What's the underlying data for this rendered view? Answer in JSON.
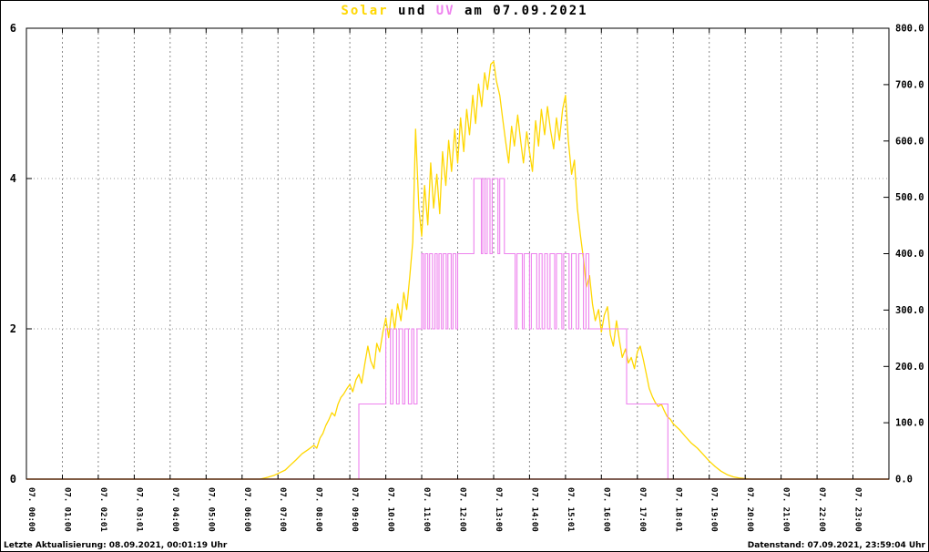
{
  "title": {
    "solar": "Solar",
    "und": " und ",
    "uv": "UV",
    "date": " am 07.09.2021"
  },
  "footer": {
    "left": "Letzte Aktualisierung: 08.09.2021, 00:01:19 Uhr",
    "right": "Datenstand: 07.09.2021, 23:59:04 Uhr"
  },
  "colors": {
    "solar": "#ffd700",
    "uv": "#ee82ee",
    "baseline": "#ff7f50",
    "grid_v": "#888888",
    "grid_h": "#999999",
    "axis": "#000000"
  },
  "chart_data": {
    "type": "line",
    "title": "Solar und UV am 07.09.2021",
    "grid": {
      "vertical": "hourly",
      "horizontal_left_ticks": [
        2,
        4,
        6
      ]
    },
    "x_axis": {
      "range_hours": [
        0,
        24
      ],
      "tick_hours": [
        0,
        1,
        2,
        3,
        4,
        5,
        6,
        7,
        8,
        9,
        10,
        11,
        12,
        13,
        14,
        15,
        16,
        17,
        18,
        19,
        20,
        21,
        22,
        23
      ],
      "tick_labels": [
        "07. 00:00",
        "07. 01:00",
        "07. 02:01",
        "07. 03:01",
        "07. 04:00",
        "07. 05:00",
        "07. 06:00",
        "07. 07:00",
        "07. 08:00",
        "07. 09:00",
        "07. 10:00",
        "07. 11:00",
        "07. 12:00",
        "07. 13:00",
        "07. 14:00",
        "07. 15:01",
        "07. 16:00",
        "07. 17:00",
        "07. 18:01",
        "07. 19:00",
        "07. 20:00",
        "07. 21:00",
        "07. 22:00",
        "07. 23:00"
      ]
    },
    "y_left": {
      "min": 0,
      "max": 6,
      "ticks": [
        0,
        2,
        4,
        6
      ],
      "tick_labels": [
        "0",
        "2",
        "4",
        "6"
      ]
    },
    "y_right": {
      "min": 0,
      "max": 800,
      "ticks": [
        0,
        100,
        200,
        300,
        400,
        500,
        600,
        700,
        800
      ],
      "tick_labels": [
        "0.0",
        "100.0",
        "200.0",
        "300.0",
        "400.0",
        "500.0",
        "600.0",
        "700.0",
        "800.0"
      ]
    },
    "series": [
      {
        "name": "Solar",
        "axis": "right",
        "style": "line",
        "color": "#ffd700",
        "points": [
          [
            0,
            0
          ],
          [
            6.5,
            0
          ],
          [
            6.7,
            3
          ],
          [
            6.9,
            7
          ],
          [
            7.0,
            10
          ],
          [
            7.2,
            16
          ],
          [
            7.33,
            24
          ],
          [
            7.5,
            34
          ],
          [
            7.67,
            45
          ],
          [
            7.83,
            52
          ],
          [
            8.0,
            60
          ],
          [
            8.08,
            55
          ],
          [
            8.17,
            73
          ],
          [
            8.25,
            81
          ],
          [
            8.33,
            95
          ],
          [
            8.42,
            106
          ],
          [
            8.5,
            118
          ],
          [
            8.58,
            112
          ],
          [
            8.67,
            133
          ],
          [
            8.75,
            145
          ],
          [
            8.83,
            151
          ],
          [
            8.92,
            161
          ],
          [
            9.0,
            168
          ],
          [
            9.08,
            155
          ],
          [
            9.17,
            176
          ],
          [
            9.25,
            186
          ],
          [
            9.33,
            170
          ],
          [
            9.42,
            206
          ],
          [
            9.5,
            236
          ],
          [
            9.58,
            210
          ],
          [
            9.67,
            196
          ],
          [
            9.75,
            241
          ],
          [
            9.83,
            226
          ],
          [
            9.92,
            261
          ],
          [
            10.0,
            286
          ],
          [
            10.08,
            251
          ],
          [
            10.17,
            301
          ],
          [
            10.25,
            266
          ],
          [
            10.33,
            311
          ],
          [
            10.42,
            281
          ],
          [
            10.5,
            331
          ],
          [
            10.58,
            301
          ],
          [
            10.67,
            361
          ],
          [
            10.75,
            421
          ],
          [
            10.83,
            621
          ],
          [
            10.92,
            481
          ],
          [
            11.0,
            431
          ],
          [
            11.08,
            521
          ],
          [
            11.17,
            451
          ],
          [
            11.25,
            561
          ],
          [
            11.33,
            481
          ],
          [
            11.42,
            541
          ],
          [
            11.5,
            471
          ],
          [
            11.58,
            581
          ],
          [
            11.67,
            521
          ],
          [
            11.75,
            601
          ],
          [
            11.83,
            546
          ],
          [
            11.92,
            621
          ],
          [
            12.0,
            561
          ],
          [
            12.08,
            641
          ],
          [
            12.17,
            581
          ],
          [
            12.25,
            656
          ],
          [
            12.33,
            611
          ],
          [
            12.42,
            681
          ],
          [
            12.5,
            631
          ],
          [
            12.58,
            701
          ],
          [
            12.67,
            661
          ],
          [
            12.75,
            721
          ],
          [
            12.83,
            691
          ],
          [
            12.92,
            736
          ],
          [
            13.0,
            741
          ],
          [
            13.08,
            706
          ],
          [
            13.17,
            681
          ],
          [
            13.25,
            641
          ],
          [
            13.33,
            601
          ],
          [
            13.42,
            561
          ],
          [
            13.5,
            626
          ],
          [
            13.58,
            591
          ],
          [
            13.67,
            646
          ],
          [
            13.75,
            601
          ],
          [
            13.83,
            561
          ],
          [
            13.92,
            616
          ],
          [
            14.0,
            581
          ],
          [
            14.08,
            546
          ],
          [
            14.17,
            636
          ],
          [
            14.25,
            591
          ],
          [
            14.33,
            656
          ],
          [
            14.42,
            611
          ],
          [
            14.5,
            661
          ],
          [
            14.58,
            621
          ],
          [
            14.67,
            586
          ],
          [
            14.75,
            641
          ],
          [
            14.83,
            601
          ],
          [
            14.92,
            656
          ],
          [
            15.0,
            681
          ],
          [
            15.08,
            601
          ],
          [
            15.17,
            541
          ],
          [
            15.25,
            566
          ],
          [
            15.33,
            481
          ],
          [
            15.42,
            431
          ],
          [
            15.5,
            391
          ],
          [
            15.58,
            341
          ],
          [
            15.67,
            361
          ],
          [
            15.75,
            311
          ],
          [
            15.83,
            281
          ],
          [
            15.92,
            301
          ],
          [
            16.0,
            261
          ],
          [
            16.08,
            291
          ],
          [
            16.17,
            306
          ],
          [
            16.25,
            256
          ],
          [
            16.33,
            236
          ],
          [
            16.42,
            281
          ],
          [
            16.5,
            246
          ],
          [
            16.58,
            216
          ],
          [
            16.67,
            231
          ],
          [
            16.75,
            206
          ],
          [
            16.83,
            216
          ],
          [
            16.92,
            196
          ],
          [
            17.0,
            226
          ],
          [
            17.08,
            236
          ],
          [
            17.17,
            211
          ],
          [
            17.25,
            186
          ],
          [
            17.33,
            161
          ],
          [
            17.42,
            146
          ],
          [
            17.5,
            136
          ],
          [
            17.58,
            129
          ],
          [
            17.67,
            133
          ],
          [
            17.75,
            121
          ],
          [
            17.83,
            111
          ],
          [
            17.92,
            106
          ],
          [
            18.0,
            98
          ],
          [
            18.17,
            88
          ],
          [
            18.33,
            76
          ],
          [
            18.5,
            64
          ],
          [
            18.67,
            55
          ],
          [
            18.83,
            44
          ],
          [
            19.0,
            32
          ],
          [
            19.17,
            22
          ],
          [
            19.33,
            14
          ],
          [
            19.5,
            8
          ],
          [
            19.67,
            4
          ],
          [
            19.83,
            2
          ],
          [
            20.0,
            1
          ],
          [
            20.17,
            0
          ],
          [
            24,
            0
          ]
        ]
      },
      {
        "name": "UV",
        "axis": "left",
        "style": "step",
        "color": "#ee82ee",
        "points": [
          [
            0,
            0
          ],
          [
            9.25,
            1
          ],
          [
            10.0,
            2
          ],
          [
            10.13,
            1
          ],
          [
            10.2,
            2
          ],
          [
            10.3,
            1
          ],
          [
            10.37,
            2
          ],
          [
            10.47,
            1
          ],
          [
            10.53,
            2
          ],
          [
            10.63,
            1
          ],
          [
            10.72,
            2
          ],
          [
            10.78,
            1
          ],
          [
            10.87,
            2
          ],
          [
            11.0,
            3
          ],
          [
            11.05,
            2
          ],
          [
            11.1,
            3
          ],
          [
            11.17,
            2
          ],
          [
            11.22,
            3
          ],
          [
            11.3,
            2
          ],
          [
            11.37,
            3
          ],
          [
            11.43,
            2
          ],
          [
            11.48,
            3
          ],
          [
            11.55,
            2
          ],
          [
            11.6,
            3
          ],
          [
            11.68,
            2
          ],
          [
            11.73,
            3
          ],
          [
            11.82,
            2
          ],
          [
            11.87,
            3
          ],
          [
            11.95,
            2
          ],
          [
            12.0,
            3
          ],
          [
            12.45,
            4
          ],
          [
            12.66,
            3
          ],
          [
            12.7,
            4
          ],
          [
            12.76,
            3
          ],
          [
            12.82,
            4
          ],
          [
            12.9,
            3
          ],
          [
            12.96,
            4
          ],
          [
            13.12,
            3
          ],
          [
            13.17,
            4
          ],
          [
            13.3,
            3
          ],
          [
            13.6,
            2
          ],
          [
            13.65,
            3
          ],
          [
            13.8,
            2
          ],
          [
            13.85,
            3
          ],
          [
            14.0,
            2
          ],
          [
            14.05,
            3
          ],
          [
            14.2,
            2
          ],
          [
            14.27,
            3
          ],
          [
            14.35,
            2
          ],
          [
            14.42,
            3
          ],
          [
            14.5,
            2
          ],
          [
            14.57,
            3
          ],
          [
            14.7,
            2
          ],
          [
            14.75,
            3
          ],
          [
            14.9,
            2
          ],
          [
            14.95,
            3
          ],
          [
            15.1,
            2
          ],
          [
            15.17,
            3
          ],
          [
            15.3,
            2
          ],
          [
            15.37,
            3
          ],
          [
            15.5,
            2
          ],
          [
            15.57,
            3
          ],
          [
            15.65,
            2
          ],
          [
            16.7,
            1
          ],
          [
            17.85,
            0
          ],
          [
            24,
            0
          ]
        ]
      },
      {
        "name": "Nulllinie",
        "axis": "left",
        "style": "line",
        "color": "#ff7f50",
        "points": [
          [
            0,
            0
          ],
          [
            24,
            0
          ]
        ]
      }
    ]
  }
}
